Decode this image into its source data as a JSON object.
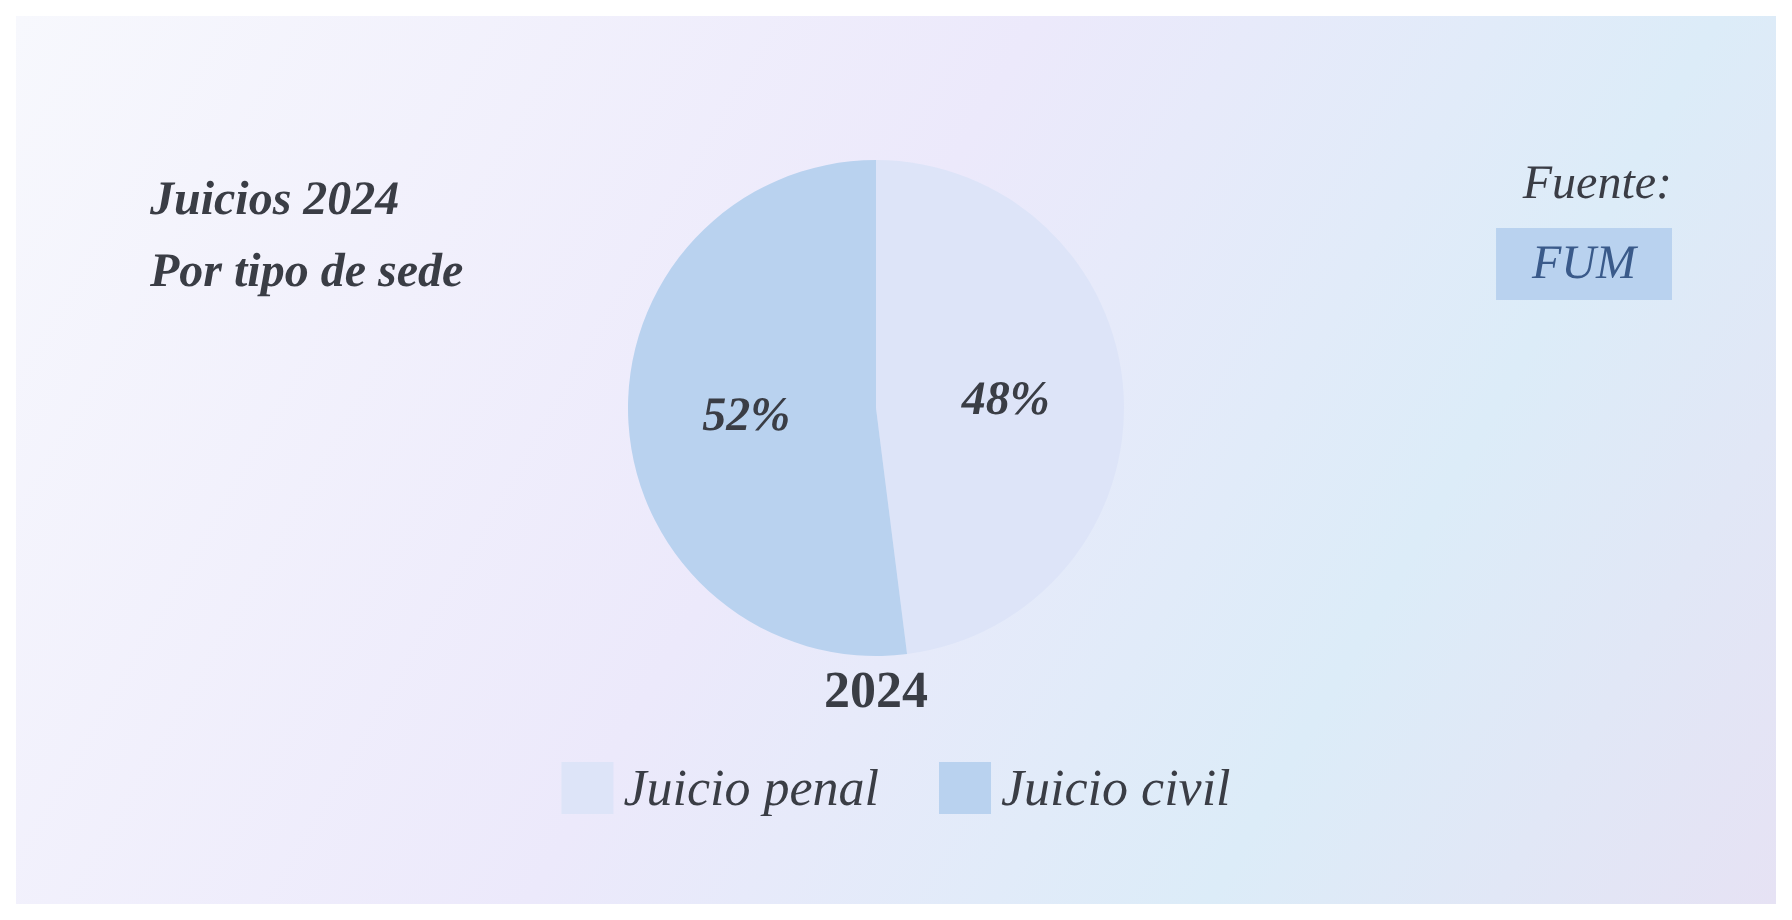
{
  "chart_data": {
    "type": "pie",
    "title": "Juicios 2024",
    "subtitle": "Por tipo de sede",
    "xlabel": "2024",
    "categories": [
      "Juicio penal",
      "Juicio civil"
    ],
    "values": [
      48,
      52
    ],
    "value_labels": [
      "48%",
      "52%"
    ],
    "colors": [
      "#dde4f8",
      "#b9d2ef"
    ],
    "legend": "bottom",
    "annotations": [
      "Fuente:",
      "FUM"
    ]
  }
}
